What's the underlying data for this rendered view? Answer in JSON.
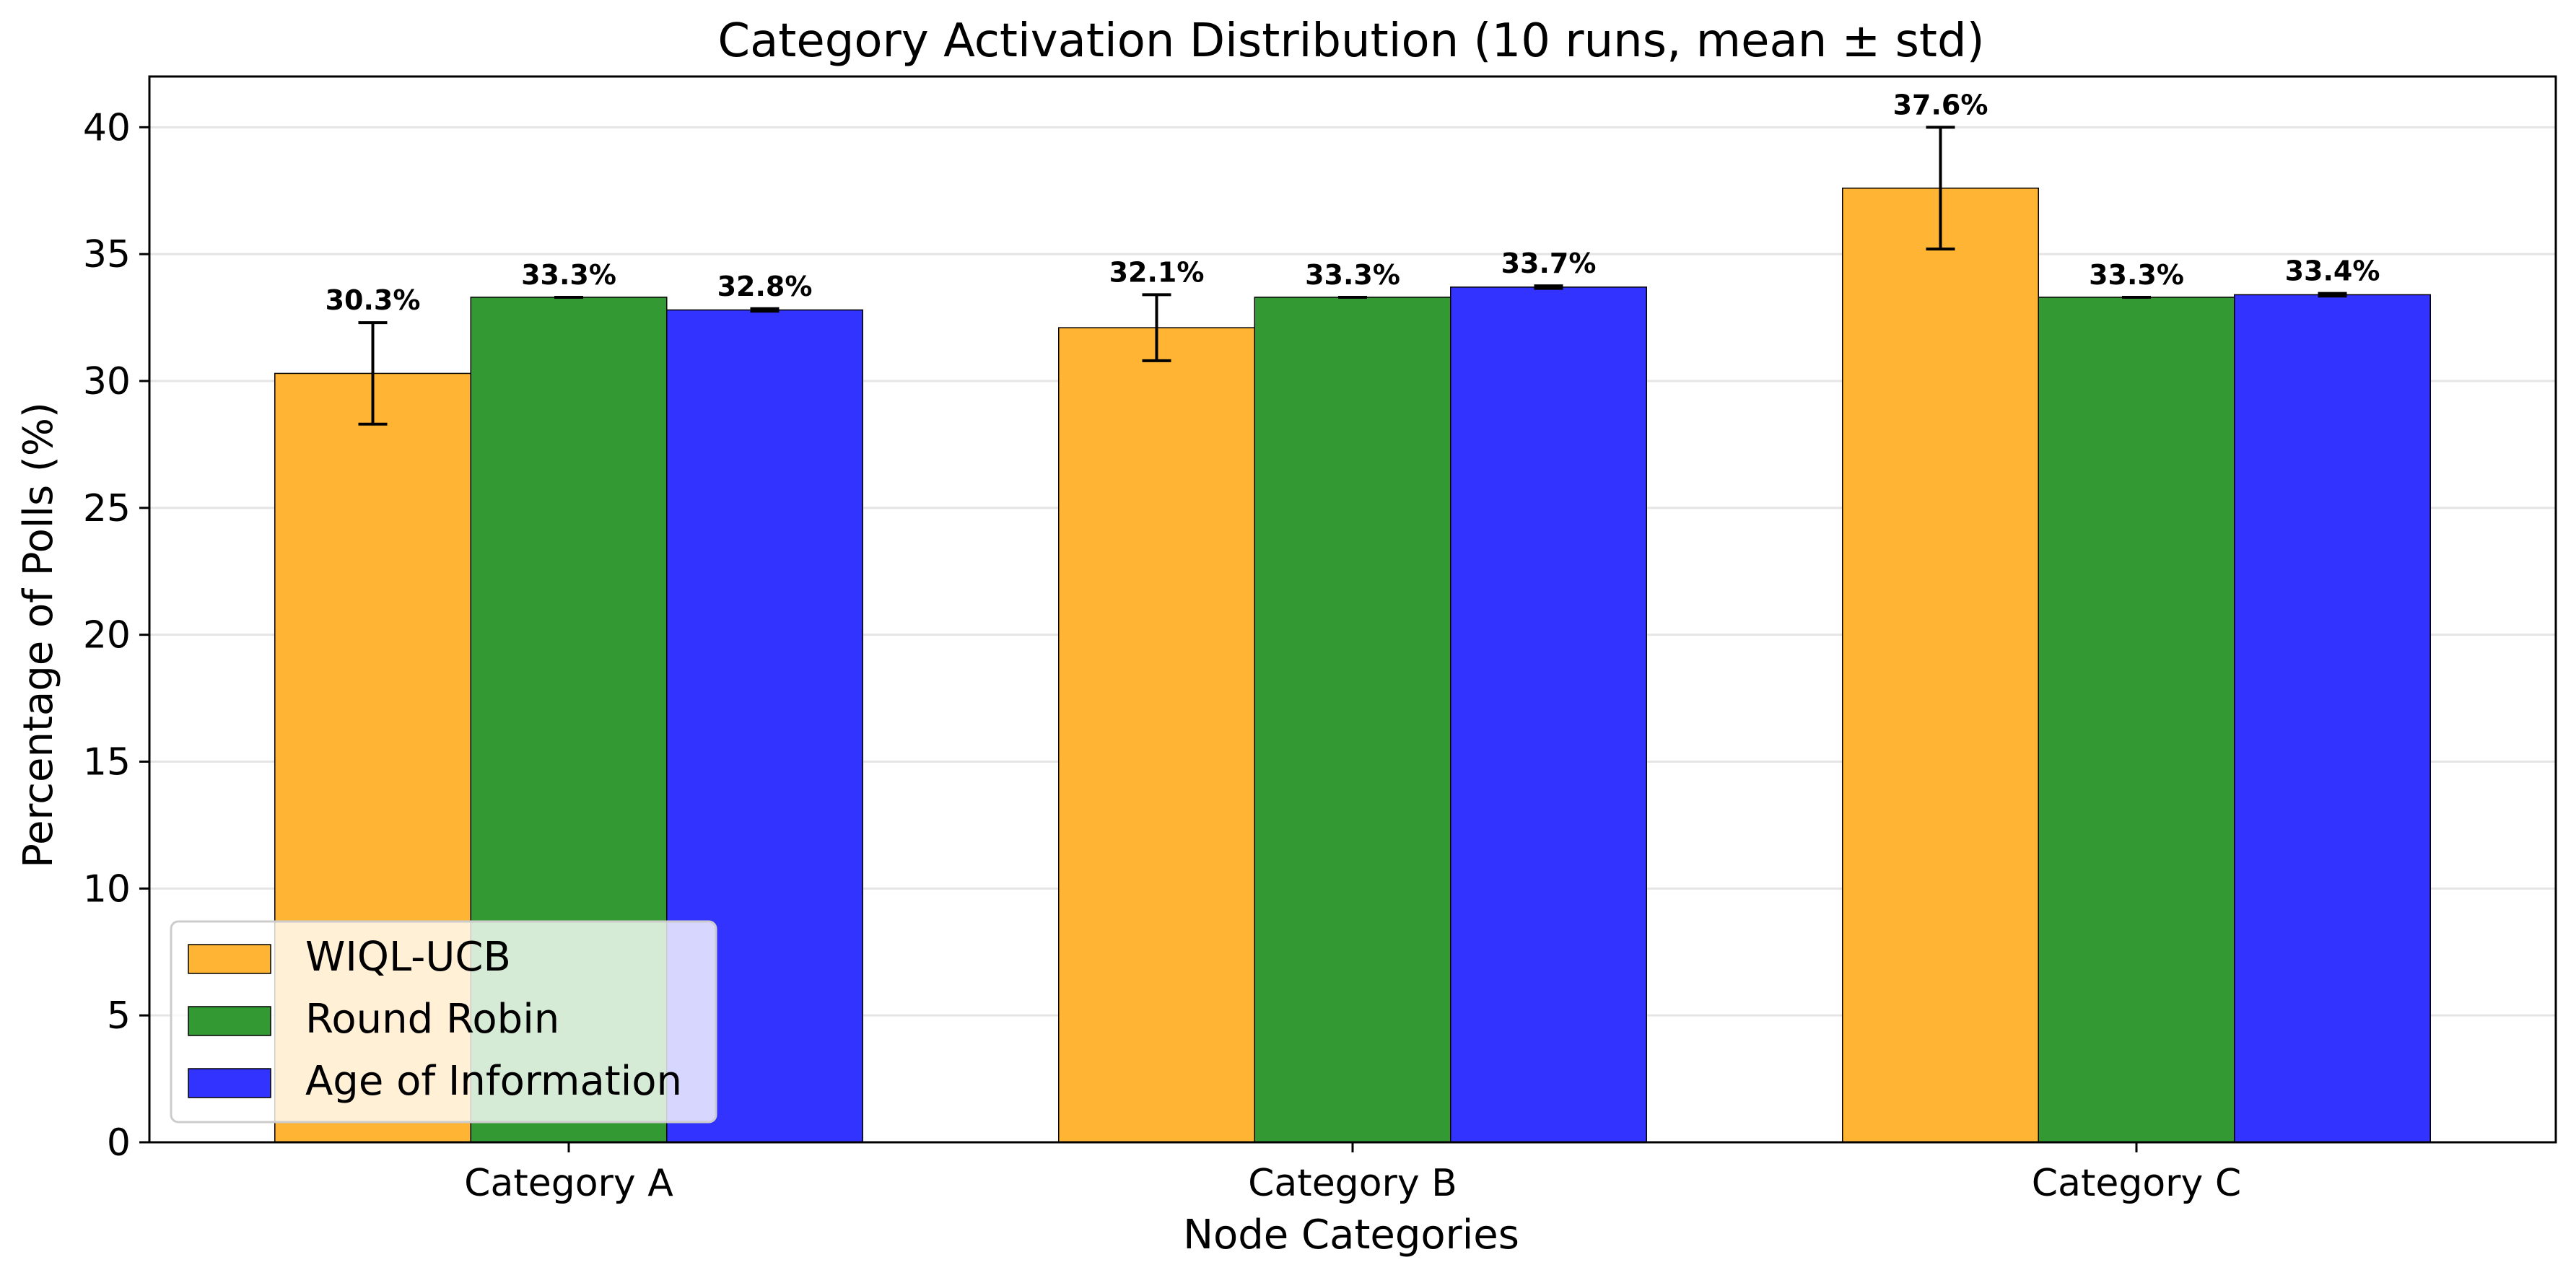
{
  "chart_data": {
    "type": "bar",
    "title": "Category Activation Distribution (10 runs, mean ± std)",
    "xlabel": "Node Categories",
    "ylabel": "Percentage of Polls (%)",
    "ylim": [
      0,
      42
    ],
    "yticks": [
      0,
      5,
      10,
      15,
      20,
      25,
      30,
      35,
      40
    ],
    "grid": "horizontal",
    "legend_position": "lower-left",
    "categories": [
      "Category A",
      "Category B",
      "Category C"
    ],
    "series": [
      {
        "name": "WIQL-UCB",
        "color": "#FFB433",
        "values": [
          30.3,
          32.1,
          37.6
        ],
        "errors": [
          2.0,
          1.3,
          2.4
        ],
        "labels": [
          "30.3%",
          "32.1%",
          "37.6%"
        ]
      },
      {
        "name": "Round Robin",
        "color": "#339933",
        "values": [
          33.3,
          33.3,
          33.3
        ],
        "errors": [
          0.0,
          0.0,
          0.0
        ],
        "labels": [
          "33.3%",
          "33.3%",
          "33.3%"
        ]
      },
      {
        "name": "Age of Information",
        "color": "#3333FF",
        "values": [
          32.8,
          33.7,
          33.4
        ],
        "errors": [
          0.05,
          0.05,
          0.05
        ],
        "labels": [
          "32.8%",
          "33.7%",
          "33.4%"
        ]
      }
    ]
  }
}
